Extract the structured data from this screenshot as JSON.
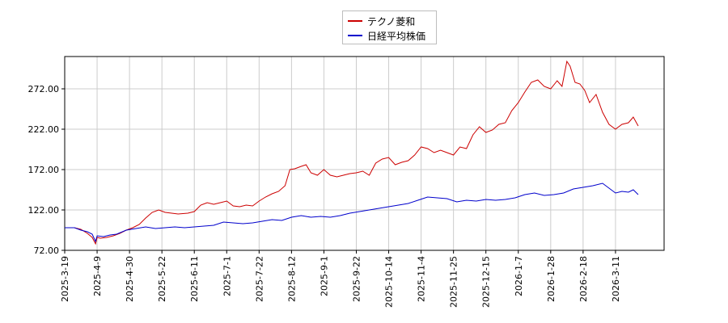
{
  "chart_data": {
    "type": "line",
    "title": "",
    "xlabel": "",
    "ylabel": "",
    "ylim": [
      72,
      312
    ],
    "y_ticks": [
      "72.00",
      "122.00",
      "172.00",
      "222.00",
      "272.00"
    ],
    "x_tick_labels": [
      "2025-3-19",
      "2025-4-9",
      "2025-4-30",
      "2025-5-22",
      "2025-6-11",
      "2025-7-1",
      "2025-7-22",
      "2025-8-12",
      "2025-9-1",
      "2025-9-22",
      "2025-10-14",
      "2025-11-4",
      "2025-11-25",
      "2025-12-15",
      "2026-1-7",
      "2026-1-28",
      "2026-2-18",
      "2026-3-11"
    ],
    "x_range": [
      0,
      18.5
    ],
    "grid": true,
    "legend_position": "top-center",
    "series": [
      {
        "name": "テクノ菱和",
        "color": "#cc0000",
        "points": [
          [
            0,
            100
          ],
          [
            0.3,
            100
          ],
          [
            0.5,
            98
          ],
          [
            0.7,
            93
          ],
          [
            0.85,
            88
          ],
          [
            0.95,
            80
          ],
          [
            1.0,
            88
          ],
          [
            1.1,
            87
          ],
          [
            1.3,
            88
          ],
          [
            1.5,
            90
          ],
          [
            1.7,
            93
          ],
          [
            1.9,
            97
          ],
          [
            2.1,
            100
          ],
          [
            2.3,
            104
          ],
          [
            2.5,
            112
          ],
          [
            2.7,
            119
          ],
          [
            2.9,
            122
          ],
          [
            3.1,
            119
          ],
          [
            3.3,
            118
          ],
          [
            3.5,
            117
          ],
          [
            3.8,
            118
          ],
          [
            4.0,
            120
          ],
          [
            4.2,
            128
          ],
          [
            4.4,
            131
          ],
          [
            4.6,
            129
          ],
          [
            4.8,
            131
          ],
          [
            5.0,
            133
          ],
          [
            5.2,
            127
          ],
          [
            5.4,
            126
          ],
          [
            5.6,
            128
          ],
          [
            5.8,
            127
          ],
          [
            6.0,
            133
          ],
          [
            6.2,
            138
          ],
          [
            6.4,
            142
          ],
          [
            6.6,
            145
          ],
          [
            6.8,
            152
          ],
          [
            6.95,
            172
          ],
          [
            7.1,
            173
          ],
          [
            7.3,
            176
          ],
          [
            7.45,
            178
          ],
          [
            7.6,
            168
          ],
          [
            7.8,
            165
          ],
          [
            8.0,
            172
          ],
          [
            8.2,
            165
          ],
          [
            8.4,
            163
          ],
          [
            8.6,
            165
          ],
          [
            8.8,
            167
          ],
          [
            9.0,
            168
          ],
          [
            9.2,
            170
          ],
          [
            9.4,
            165
          ],
          [
            9.6,
            180
          ],
          [
            9.8,
            185
          ],
          [
            10.0,
            187
          ],
          [
            10.2,
            178
          ],
          [
            10.4,
            181
          ],
          [
            10.6,
            183
          ],
          [
            10.8,
            190
          ],
          [
            11.0,
            200
          ],
          [
            11.2,
            198
          ],
          [
            11.4,
            193
          ],
          [
            11.6,
            196
          ],
          [
            11.8,
            193
          ],
          [
            12.0,
            190
          ],
          [
            12.2,
            200
          ],
          [
            12.4,
            198
          ],
          [
            12.6,
            215
          ],
          [
            12.8,
            225
          ],
          [
            13.0,
            218
          ],
          [
            13.2,
            221
          ],
          [
            13.4,
            228
          ],
          [
            13.6,
            230
          ],
          [
            13.8,
            245
          ],
          [
            14.0,
            255
          ],
          [
            14.2,
            268
          ],
          [
            14.4,
            280
          ],
          [
            14.6,
            283
          ],
          [
            14.8,
            275
          ],
          [
            15.0,
            272
          ],
          [
            15.2,
            282
          ],
          [
            15.35,
            275
          ],
          [
            15.5,
            306
          ],
          [
            15.6,
            300
          ],
          [
            15.75,
            280
          ],
          [
            15.9,
            278
          ],
          [
            16.05,
            270
          ],
          [
            16.2,
            255
          ],
          [
            16.4,
            265
          ],
          [
            16.6,
            243
          ],
          [
            16.8,
            228
          ],
          [
            17.0,
            222
          ],
          [
            17.2,
            228
          ],
          [
            17.4,
            230
          ],
          [
            17.55,
            237
          ],
          [
            17.7,
            226
          ]
        ]
      },
      {
        "name": "日経平均株価",
        "color": "#0000cc",
        "points": [
          [
            0,
            100
          ],
          [
            0.3,
            100
          ],
          [
            0.5,
            97
          ],
          [
            0.7,
            95
          ],
          [
            0.85,
            92
          ],
          [
            0.95,
            83
          ],
          [
            1.0,
            90
          ],
          [
            1.2,
            89
          ],
          [
            1.4,
            91
          ],
          [
            1.6,
            92
          ],
          [
            1.9,
            97
          ],
          [
            2.2,
            99
          ],
          [
            2.5,
            101
          ],
          [
            2.8,
            99
          ],
          [
            3.1,
            100
          ],
          [
            3.4,
            101
          ],
          [
            3.7,
            100
          ],
          [
            4.0,
            101
          ],
          [
            4.3,
            102
          ],
          [
            4.6,
            103
          ],
          [
            4.9,
            107
          ],
          [
            5.2,
            106
          ],
          [
            5.5,
            105
          ],
          [
            5.8,
            106
          ],
          [
            6.1,
            108
          ],
          [
            6.4,
            110
          ],
          [
            6.7,
            109
          ],
          [
            7.0,
            113
          ],
          [
            7.3,
            115
          ],
          [
            7.6,
            113
          ],
          [
            7.9,
            114
          ],
          [
            8.2,
            113
          ],
          [
            8.5,
            115
          ],
          [
            8.8,
            118
          ],
          [
            9.1,
            120
          ],
          [
            9.4,
            122
          ],
          [
            9.7,
            124
          ],
          [
            10.0,
            126
          ],
          [
            10.3,
            128
          ],
          [
            10.6,
            130
          ],
          [
            10.9,
            134
          ],
          [
            11.2,
            138
          ],
          [
            11.5,
            137
          ],
          [
            11.8,
            136
          ],
          [
            12.1,
            132
          ],
          [
            12.4,
            134
          ],
          [
            12.7,
            133
          ],
          [
            13.0,
            135
          ],
          [
            13.3,
            134
          ],
          [
            13.6,
            135
          ],
          [
            13.9,
            137
          ],
          [
            14.2,
            141
          ],
          [
            14.5,
            143
          ],
          [
            14.8,
            140
          ],
          [
            15.1,
            141
          ],
          [
            15.4,
            143
          ],
          [
            15.7,
            148
          ],
          [
            16.0,
            150
          ],
          [
            16.3,
            152
          ],
          [
            16.6,
            155
          ],
          [
            16.9,
            146
          ],
          [
            17.0,
            143
          ],
          [
            17.2,
            145
          ],
          [
            17.4,
            144
          ],
          [
            17.55,
            147
          ],
          [
            17.7,
            141
          ]
        ]
      }
    ]
  }
}
